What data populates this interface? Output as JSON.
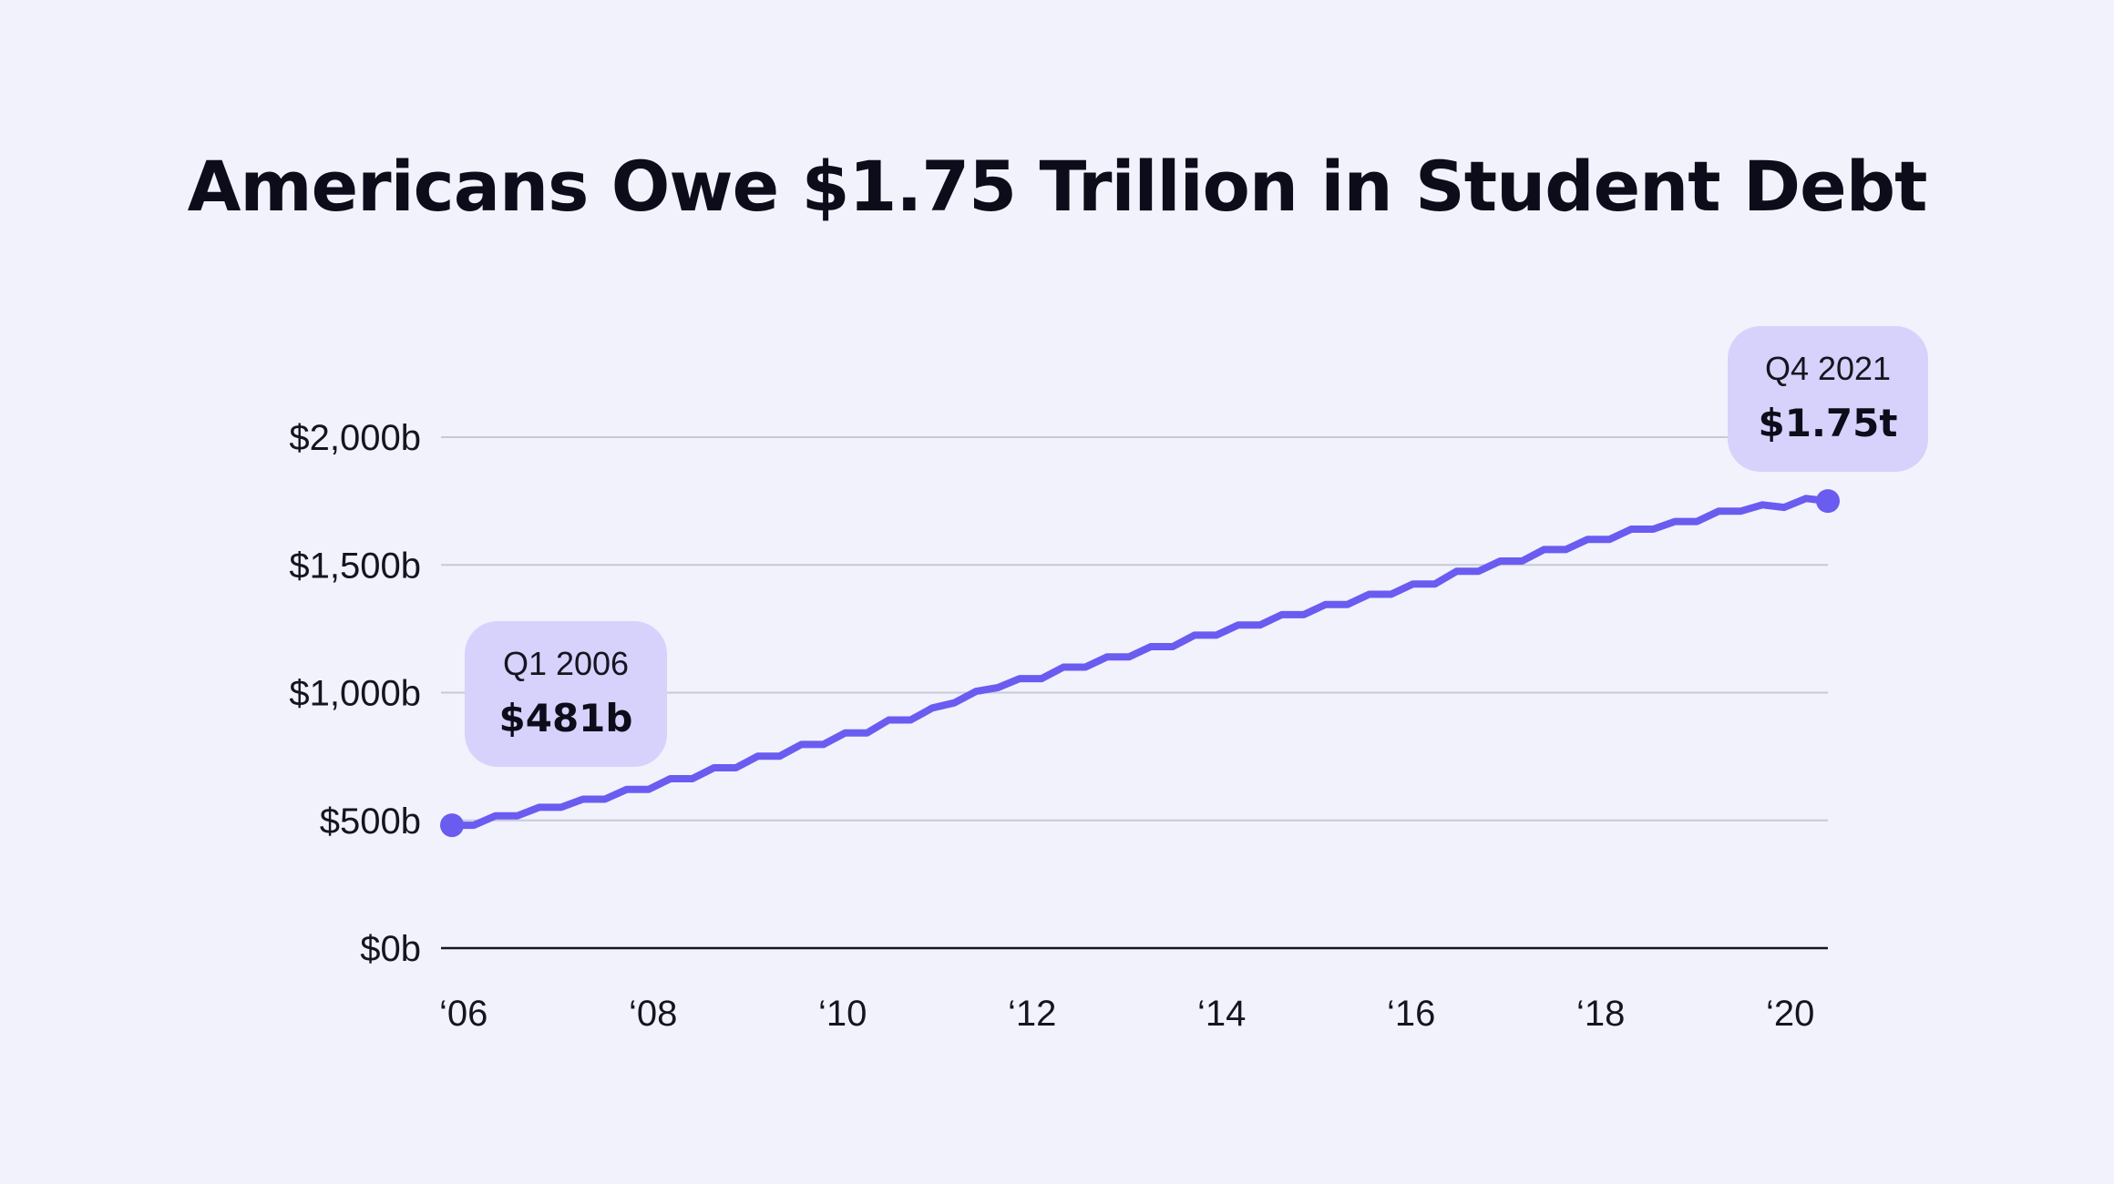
{
  "colors": {
    "background": "#f2f2fd",
    "line": "#6a5cf0",
    "gridline": "#c9c9d6",
    "axis": "#15151f",
    "annotation_bg": "#d6d2fb"
  },
  "chart_data": {
    "type": "line",
    "title": "Americans Owe $1.75 Trillion in Student Debt",
    "xlabel": "",
    "ylabel": "",
    "ylim": [
      0,
      2000
    ],
    "grid": true,
    "legend": "none",
    "y_ticks": [
      {
        "value": 0,
        "label": "$0b"
      },
      {
        "value": 500,
        "label": "$500b"
      },
      {
        "value": 1000,
        "label": "$1,000b"
      },
      {
        "value": 1500,
        "label": "$1,500b"
      },
      {
        "value": 2000,
        "label": "$2,000b"
      }
    ],
    "x_ticks": [
      {
        "value": 2006,
        "label": "‘06"
      },
      {
        "value": 2008,
        "label": "‘08"
      },
      {
        "value": 2010,
        "label": "‘10"
      },
      {
        "value": 2012,
        "label": "‘12"
      },
      {
        "value": 2014,
        "label": "‘14"
      },
      {
        "value": 2016,
        "label": "‘16"
      },
      {
        "value": 2018,
        "label": "‘18"
      },
      {
        "value": 2020,
        "label": "‘20"
      }
    ],
    "x_range": [
      "Q1 2006",
      "Q4 2021"
    ],
    "series": [
      {
        "values": [
          481,
          481,
          518,
          518,
          551,
          551,
          583,
          583,
          621,
          621,
          663,
          663,
          706,
          706,
          751,
          751,
          797,
          797,
          842,
          842,
          893,
          893,
          940,
          960,
          1005,
          1020,
          1055,
          1055,
          1100,
          1100,
          1140,
          1140,
          1180,
          1180,
          1225,
          1225,
          1265,
          1265,
          1305,
          1305,
          1345,
          1345,
          1385,
          1385,
          1425,
          1425,
          1475,
          1475,
          1515,
          1515,
          1560,
          1560,
          1600,
          1600,
          1640,
          1640,
          1670,
          1670,
          1710,
          1710,
          1735,
          1725,
          1760,
          1750
        ]
      }
    ],
    "annotations": [
      {
        "period": "Q1 2006",
        "label": "$481b",
        "value": 481,
        "point": "first"
      },
      {
        "period": "Q4 2021",
        "label": "$1.75t",
        "value": 1750,
        "point": "last"
      }
    ]
  }
}
